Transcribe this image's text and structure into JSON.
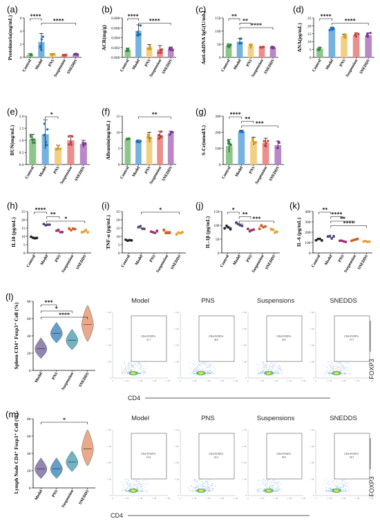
{
  "chart_data": [
    {
      "id": "a",
      "letter": "(a)",
      "type": "bar",
      "ylabel": "Proteinuria(mg/mL)",
      "categories": [
        "Control",
        "Model",
        "PNS",
        "Suspension",
        "SNEDDS"
      ],
      "values": [
        0.4,
        2.35,
        0.45,
        0.35,
        0.45
      ],
      "errors": [
        0.15,
        1.3,
        0.12,
        0.12,
        0.15
      ],
      "ylim": [
        0,
        6
      ],
      "yticks": [
        0,
        2,
        4,
        6
      ],
      "ytick_labels": [
        "0",
        "2",
        "4",
        "6"
      ],
      "sig": [
        {
          "label": "****",
          "from": 0,
          "to": 1
        },
        {
          "label": "****",
          "from": 1,
          "to": 4
        }
      ]
    },
    {
      "id": "b",
      "letter": "(b)",
      "type": "bar",
      "ylabel": "ACR(mg/g)",
      "categories": [
        "Control",
        "Model",
        "PNS",
        "Suspension",
        "SNEDDS"
      ],
      "values": [
        0.0015,
        0.0054,
        0.002,
        0.0016,
        0.0017
      ],
      "errors": [
        0.0004,
        0.0012,
        0.0006,
        0.0008,
        0.0004
      ],
      "ylim": [
        0,
        0.008
      ],
      "yticks": [
        0,
        0.002,
        0.004,
        0.006,
        0.008
      ],
      "ytick_labels": [
        "0.000",
        "0.002",
        "0.004",
        "0.006",
        "0.008"
      ],
      "sig": [
        {
          "label": "****",
          "from": 0,
          "to": 1
        },
        {
          "label": "****",
          "from": 1,
          "to": 4
        }
      ]
    },
    {
      "id": "c",
      "letter": "(c)",
      "type": "bar",
      "ylabel": "Anti-dsDNA IgG(U/mL)",
      "categories": [
        "Control",
        "Model",
        "PNS",
        "Suspension",
        "SNEDDS"
      ],
      "values": [
        45,
        60,
        42,
        38,
        38
      ],
      "errors": [
        6,
        12,
        8,
        3,
        3
      ],
      "ylim": [
        0,
        150
      ],
      "yticks": [
        0,
        50,
        100,
        150
      ],
      "ytick_labels": [
        "0",
        "50",
        "100",
        "150"
      ],
      "sig": [
        {
          "label": "**",
          "from": 0,
          "to": 1
        },
        {
          "label": "**",
          "from": 1,
          "to": 2
        },
        {
          "label": "****",
          "from": 1,
          "to": 4
        }
      ]
    },
    {
      "id": "d",
      "letter": "(d)",
      "type": "bar",
      "ylabel": "ANA(pg/mL)",
      "categories": [
        "Control",
        "Model",
        "PNS",
        "Suspension",
        "SNEDDS"
      ],
      "values": [
        5.5,
        18,
        13.5,
        14,
        14
      ],
      "errors": [
        1.0,
        1.2,
        1.2,
        1.5,
        1.5
      ],
      "ylim": [
        0,
        25
      ],
      "yticks": [
        0,
        5,
        10,
        15,
        20,
        25
      ],
      "ytick_labels": [
        "0",
        "5",
        "10",
        "15",
        "20",
        "25"
      ],
      "sig": [
        {
          "label": "****",
          "from": 0,
          "to": 1
        },
        {
          "label": "****",
          "from": 1,
          "to": 4
        }
      ]
    },
    {
      "id": "e",
      "letter": "(e)",
      "type": "bar",
      "ylabel": "BUN(mg/mL)",
      "categories": [
        "Control",
        "Model",
        "PNS",
        "Suspension",
        "SNEDDS"
      ],
      "values": [
        1.05,
        1.25,
        0.7,
        1.0,
        0.85
      ],
      "errors": [
        0.2,
        0.6,
        0.1,
        0.2,
        0.15
      ],
      "ylim": [
        0,
        2.0
      ],
      "yticks": [
        0,
        0.5,
        1.0,
        1.5,
        2.0
      ],
      "ytick_labels": [
        "0.0",
        "0.5",
        "1.0",
        "1.5",
        "2.0"
      ],
      "sig": [
        {
          "label": "*",
          "from": 1,
          "to": 2
        }
      ]
    },
    {
      "id": "f",
      "letter": "(f)",
      "type": "bar",
      "ylabel": "Albumin(mg/mL)",
      "categories": [
        "Control",
        "Model",
        "PNS",
        "Suspension",
        "SNEDDS"
      ],
      "values": [
        7.8,
        7.2,
        8.5,
        9.1,
        9.7
      ],
      "errors": [
        0.3,
        0.4,
        1.5,
        1.2,
        0.6
      ],
      "ylim": [
        0,
        15
      ],
      "yticks": [
        0,
        5,
        10,
        15
      ],
      "ytick_labels": [
        "0",
        "5",
        "10",
        "15"
      ],
      "sig": [
        {
          "label": "**",
          "from": 1,
          "to": 4
        }
      ]
    },
    {
      "id": "g",
      "letter": "(g)",
      "type": "bar",
      "ylabel": "S-Cr(nmol/L)",
      "categories": [
        "Control",
        "Model",
        "PNS",
        "Suspension",
        "SNEDDS"
      ],
      "values": [
        115,
        205,
        145,
        135,
        120
      ],
      "errors": [
        40,
        8,
        25,
        28,
        25
      ],
      "ylim": [
        0,
        300
      ],
      "yticks": [
        0,
        100,
        200,
        300
      ],
      "ytick_labels": [
        "0",
        "100",
        "200",
        "300"
      ],
      "sig": [
        {
          "label": "****",
          "from": 0,
          "to": 1
        },
        {
          "label": "**",
          "from": 1,
          "to": 2
        },
        {
          "label": "***",
          "from": 1,
          "to": 4
        }
      ]
    },
    {
      "id": "h",
      "letter": "(h)",
      "type": "scatter",
      "ylabel": "IL10 (pg/mL)",
      "categories": [
        "Control",
        "Model",
        "PNS",
        "Suspension",
        "SNEDDS"
      ],
      "values": [
        9.5,
        17,
        13,
        14,
        13
      ],
      "colors": [
        "#222222",
        "#55437a",
        "#a03070",
        "#d05a20",
        "#e8a030"
      ],
      "ylim": [
        0,
        25
      ],
      "yticks": [
        0,
        5,
        10,
        15,
        20,
        25
      ],
      "ytick_labels": [
        "0",
        "5",
        "10",
        "15",
        "20",
        "25"
      ],
      "sig": [
        {
          "label": "****",
          "from": 0,
          "to": 1
        },
        {
          "label": "**",
          "from": 1,
          "to": 2
        },
        {
          "label": "*",
          "from": 1,
          "to": 4
        }
      ]
    },
    {
      "id": "i",
      "letter": "(i)",
      "type": "scatter",
      "ylabel": "TNF-α (pg/mL)",
      "categories": [
        "Control",
        "Model",
        "PNS",
        "Suspension",
        "SNEDDS"
      ],
      "values": [
        8,
        15,
        12.5,
        13,
        12
      ],
      "colors": [
        "#222222",
        "#55437a",
        "#a03070",
        "#d05a20",
        "#e8a030"
      ],
      "ylim": [
        0,
        25
      ],
      "yticks": [
        0,
        5,
        10,
        15,
        20,
        25
      ],
      "ytick_labels": [
        "0",
        "5",
        "10",
        "15",
        "20",
        "25"
      ],
      "sig": [
        {
          "label": "*",
          "from": 1,
          "to": 4
        }
      ]
    },
    {
      "id": "j",
      "letter": "(j)",
      "type": "scatter",
      "ylabel": "IL-1β (pg/mL)",
      "categories": [
        "Control",
        "Model",
        "PNS",
        "Suspension",
        "SNEDDS"
      ],
      "values": [
        92,
        105,
        85,
        95,
        80
      ],
      "colors": [
        "#222222",
        "#55437a",
        "#a03070",
        "#d05a20",
        "#e8a030"
      ],
      "ylim": [
        0,
        150
      ],
      "yticks": [
        0,
        50,
        100,
        150
      ],
      "ytick_labels": [
        "0",
        "50",
        "100",
        "150"
      ],
      "sig": [
        {
          "label": "*",
          "from": 0,
          "to": 1
        },
        {
          "label": "**",
          "from": 1,
          "to": 2
        },
        {
          "label": "***",
          "from": 1,
          "to": 4
        }
      ]
    },
    {
      "id": "k",
      "letter": "(k)",
      "type": "scatter",
      "ylabel": "IL-6 (pg/mL)",
      "categories": [
        "Control",
        "Model",
        "PNS",
        "Suspension",
        "SNEDDS"
      ],
      "values": [
        130,
        150,
        115,
        125,
        105
      ],
      "colors": [
        "#222222",
        "#55437a",
        "#a03070",
        "#d05a20",
        "#e8a030"
      ],
      "ylim": [
        0,
        400
      ],
      "yticks": [
        0,
        100,
        200,
        300,
        400
      ],
      "ytick_labels": [
        "0",
        "100",
        "200",
        "300",
        "400"
      ],
      "sig": [
        {
          "label": "**",
          "from": 0,
          "to": 1
        },
        {
          "label": "****",
          "from": 1,
          "to": 2
        },
        {
          "label": "**",
          "from": 1,
          "to": 3
        },
        {
          "label": "****",
          "from": 1,
          "to": 4
        }
      ]
    },
    {
      "id": "l",
      "letter": "(l)",
      "type": "violin",
      "ylabel": "Spleen CD4⁺ Foxp3⁺ Cell (%)",
      "categories": [
        "Model",
        "PNS",
        "Suspension",
        "SNEDDS"
      ],
      "medians": [
        25,
        43,
        35,
        53
      ],
      "colors": [
        "#7e72a6",
        "#4a8ec0",
        "#5aa6b6",
        "#e89a78"
      ],
      "ylim": [
        0,
        80
      ],
      "yticks": [
        0,
        20,
        40,
        60,
        80
      ],
      "ytick_labels": [
        "0",
        "20",
        "40",
        "60",
        "80"
      ],
      "sig": [
        {
          "label": "***",
          "from": 0,
          "to": 1
        },
        {
          "label": "*",
          "from": 0,
          "to": 2
        },
        {
          "label": "****",
          "from": 0,
          "to": 3
        }
      ],
      "flow": {
        "titles": [
          "Model",
          "PNS",
          "Suspensions",
          "SNEDDS"
        ],
        "gate_name": "CD4+FOXP3+",
        "gate_values": [
          "21.7",
          "40.5",
          "35.5",
          "57.5"
        ],
        "x_axis": "CD4",
        "y_axis": "FOXP3",
        "ticks": [
          "0",
          "1· 10³",
          "1· 10⁴",
          "1· 10⁵",
          "1· 10⁶"
        ]
      }
    },
    {
      "id": "m",
      "letter": "(m)",
      "type": "violin",
      "ylabel": "Lymph Node CD4⁺ Foxp3⁺ Cell (%)",
      "categories": [
        "Model",
        "PNS",
        "Suspension",
        "SNEDDS"
      ],
      "medians": [
        22,
        22,
        30,
        45
      ],
      "colors": [
        "#7e72a6",
        "#4a8ec0",
        "#5aa6b6",
        "#e89a78"
      ],
      "ylim": [
        0,
        80
      ],
      "yticks": [
        0,
        20,
        40,
        60,
        80
      ],
      "ytick_labels": [
        "0",
        "20",
        "40",
        "60",
        "80"
      ],
      "sig": [
        {
          "label": "*",
          "from": 0,
          "to": 3
        }
      ],
      "flow": {
        "titles": [
          "Model",
          "PNS",
          "Suspensions",
          "SNEDDS"
        ],
        "gate_name": "CD4+FOXP3+",
        "gate_values": [
          "19.4",
          "22.2",
          "30.5",
          "54.5"
        ],
        "x_axis": "CD4",
        "y_axis": "FOXP3",
        "ticks": [
          "0",
          "1· 10³",
          "1· 10⁴",
          "1· 10⁵",
          "1· 10⁶"
        ]
      }
    }
  ],
  "palette": {
    "bar_colors": [
      "#8cc68a",
      "#74b2e0",
      "#f2cf82",
      "#ec8f8c",
      "#b888c8"
    ],
    "dot_colors": [
      "#2e8a40",
      "#1f6fc0",
      "#d6a21c",
      "#c8443f",
      "#7d3a96"
    ],
    "flow_dots": "#5a8ad0",
    "flow_core": "#e8e040"
  }
}
